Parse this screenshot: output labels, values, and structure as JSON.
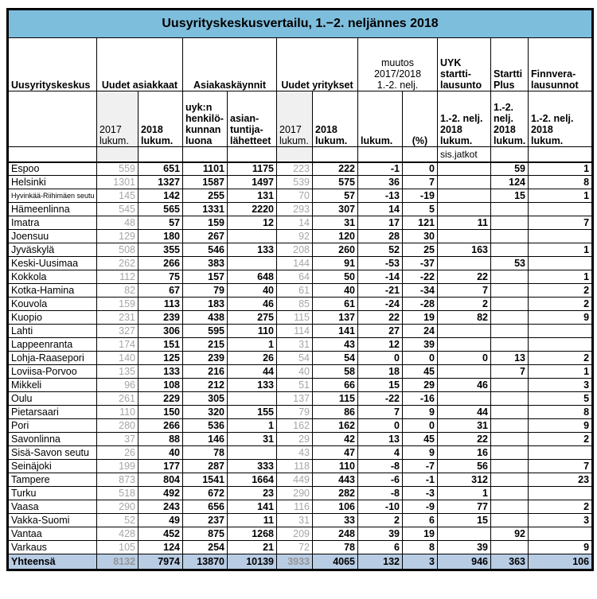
{
  "title": "Uusyrityskeskusvertailu, 1.−2. neljännes 2018",
  "colors": {
    "title_bg": "#7ebedd",
    "title_text": "#ffffff",
    "total_row_bg": "#b8cce4",
    "shaded_cell_bg": "#f0f0f0",
    "muted_text": "#a6a6a6",
    "border": "#000000"
  },
  "table": {
    "corner_label": "Uusyrityskeskus",
    "groups": [
      {
        "label": "Uudet asiakkaat",
        "span": 2
      },
      {
        "label": "Asiakaskäynnit",
        "span": 2
      },
      {
        "label": "Uudet yritykset",
        "span": 2
      },
      {
        "label": "muutos\n2017/2018\n1.-2. nelj.",
        "span": 2
      },
      {
        "label": "UYK\nstartti-\nlausunto",
        "span": 1
      },
      {
        "label": "Startti\nPlus",
        "span": 1
      },
      {
        "label": "Finnvera-\nlausunnot",
        "span": 1
      }
    ],
    "subheaders": [
      {
        "label": "2017\nlukum.",
        "muted": true
      },
      {
        "label": "2018\nlukum.",
        "muted": false
      },
      {
        "label": "uyk:n\nhenkilö-\nkunnan\nluona",
        "muted": false
      },
      {
        "label": "asian-\ntuntija-\nlähetteet",
        "muted": false
      },
      {
        "label": "2017\nlukum.",
        "muted": true
      },
      {
        "label": "2018\nlukum.",
        "muted": false
      },
      {
        "label": "lukum.",
        "muted": false
      },
      {
        "label": "(%)",
        "muted": false
      },
      {
        "label": "1.-2. nelj.\n2018\nlukum.",
        "muted": false
      },
      {
        "label": "1.-2.\nnelj.\n2018\nlukum.",
        "muted": false
      },
      {
        "label": "1.-2. nelj.\n2018\nlukum.",
        "muted": false
      }
    ],
    "note_label": "sis.jatkot",
    "rows": [
      {
        "name": "Espoo",
        "small": false,
        "values": [
          "559",
          "651",
          "1101",
          "1175",
          "223",
          "222",
          "-1",
          "0",
          "",
          "59",
          "1"
        ]
      },
      {
        "name": "Helsinki",
        "small": false,
        "values": [
          "1301",
          "1327",
          "1587",
          "1497",
          "539",
          "575",
          "36",
          "7",
          "",
          "124",
          "8"
        ]
      },
      {
        "name": "Hyvinkää-Riihimäen seutu",
        "small": true,
        "values": [
          "145",
          "142",
          "255",
          "131",
          "70",
          "57",
          "-13",
          "-19",
          "",
          "15",
          "1"
        ]
      },
      {
        "name": "Hämeenlinna",
        "small": false,
        "values": [
          "545",
          "565",
          "1331",
          "2220",
          "293",
          "307",
          "14",
          "5",
          "",
          "",
          ""
        ]
      },
      {
        "name": "Imatra",
        "small": false,
        "values": [
          "48",
          "57",
          "159",
          "12",
          "14",
          "31",
          "17",
          "121",
          "11",
          "",
          "7"
        ]
      },
      {
        "name": "Joensuu",
        "small": false,
        "values": [
          "129",
          "180",
          "267",
          "",
          "92",
          "120",
          "28",
          "30",
          "",
          "",
          ""
        ]
      },
      {
        "name": "Jyväskylä",
        "small": false,
        "values": [
          "508",
          "355",
          "546",
          "133",
          "208",
          "260",
          "52",
          "25",
          "163",
          "",
          "1"
        ]
      },
      {
        "name": "Keski-Uusimaa",
        "small": false,
        "values": [
          "262",
          "266",
          "383",
          "",
          "144",
          "91",
          "-53",
          "-37",
          "",
          "53",
          ""
        ]
      },
      {
        "name": "Kokkola",
        "small": false,
        "values": [
          "112",
          "75",
          "157",
          "648",
          "64",
          "50",
          "-14",
          "-22",
          "22",
          "",
          "1"
        ]
      },
      {
        "name": "Kotka-Hamina",
        "small": false,
        "values": [
          "82",
          "67",
          "79",
          "40",
          "61",
          "40",
          "-21",
          "-34",
          "7",
          "",
          "2"
        ]
      },
      {
        "name": "Kouvola",
        "small": false,
        "values": [
          "159",
          "113",
          "183",
          "46",
          "85",
          "61",
          "-24",
          "-28",
          "2",
          "",
          "2"
        ]
      },
      {
        "name": "Kuopio",
        "small": false,
        "values": [
          "231",
          "239",
          "438",
          "275",
          "115",
          "137",
          "22",
          "19",
          "82",
          "",
          "9"
        ]
      },
      {
        "name": "Lahti",
        "small": false,
        "values": [
          "327",
          "306",
          "595",
          "110",
          "114",
          "141",
          "27",
          "24",
          "",
          "",
          ""
        ]
      },
      {
        "name": "Lappeenranta",
        "small": false,
        "values": [
          "174",
          "151",
          "215",
          "1",
          "31",
          "43",
          "12",
          "39",
          "",
          "",
          ""
        ]
      },
      {
        "name": "Lohja-Raasepori",
        "small": false,
        "values": [
          "140",
          "125",
          "239",
          "26",
          "54",
          "54",
          "0",
          "0",
          "0",
          "13",
          "2"
        ]
      },
      {
        "name": "Loviisa-Porvoo",
        "small": false,
        "values": [
          "135",
          "133",
          "216",
          "44",
          "40",
          "58",
          "18",
          "45",
          "",
          "7",
          "1"
        ]
      },
      {
        "name": "Mikkeli",
        "small": false,
        "values": [
          "96",
          "108",
          "212",
          "133",
          "51",
          "66",
          "15",
          "29",
          "46",
          "",
          "3"
        ]
      },
      {
        "name": "Oulu",
        "small": false,
        "values": [
          "261",
          "229",
          "305",
          "",
          "137",
          "115",
          "-22",
          "-16",
          "",
          "",
          "5"
        ]
      },
      {
        "name": "Pietarsaari",
        "small": false,
        "values": [
          "110",
          "150",
          "320",
          "155",
          "79",
          "86",
          "7",
          "9",
          "44",
          "",
          "8"
        ]
      },
      {
        "name": "Pori",
        "small": false,
        "values": [
          "280",
          "266",
          "536",
          "1",
          "162",
          "162",
          "0",
          "0",
          "31",
          "",
          "9"
        ]
      },
      {
        "name": "Savonlinna",
        "small": false,
        "values": [
          "37",
          "88",
          "146",
          "31",
          "29",
          "42",
          "13",
          "45",
          "22",
          "",
          "2"
        ]
      },
      {
        "name": "Sisä-Savon seutu",
        "small": false,
        "values": [
          "26",
          "40",
          "78",
          "",
          "43",
          "47",
          "4",
          "9",
          "16",
          "",
          ""
        ]
      },
      {
        "name": "Seinäjoki",
        "small": false,
        "values": [
          "199",
          "177",
          "287",
          "333",
          "118",
          "110",
          "-8",
          "-7",
          "56",
          "",
          "7"
        ]
      },
      {
        "name": "Tampere",
        "small": false,
        "values": [
          "873",
          "804",
          "1541",
          "1664",
          "449",
          "443",
          "-6",
          "-1",
          "312",
          "",
          "23"
        ]
      },
      {
        "name": "Turku",
        "small": false,
        "values": [
          "518",
          "492",
          "672",
          "23",
          "290",
          "282",
          "-8",
          "-3",
          "1",
          "",
          ""
        ]
      },
      {
        "name": "Vaasa",
        "small": false,
        "values": [
          "290",
          "243",
          "656",
          "141",
          "116",
          "106",
          "-10",
          "-9",
          "77",
          "",
          "2"
        ]
      },
      {
        "name": "Vakka-Suomi",
        "small": false,
        "values": [
          "52",
          "49",
          "237",
          "11",
          "31",
          "33",
          "2",
          "6",
          "15",
          "",
          "3"
        ]
      },
      {
        "name": "Vantaa",
        "small": false,
        "values": [
          "428",
          "452",
          "875",
          "1268",
          "209",
          "248",
          "39",
          "19",
          "",
          "92",
          ""
        ]
      },
      {
        "name": "Varkaus",
        "small": false,
        "values": [
          "105",
          "124",
          "254",
          "21",
          "72",
          "78",
          "6",
          "8",
          "39",
          "",
          "9"
        ]
      }
    ],
    "total": {
      "name": "Yhteensä",
      "values": [
        "8132",
        "7974",
        "13870",
        "10139",
        "3933",
        "4065",
        "132",
        "3",
        "946",
        "363",
        "106"
      ]
    }
  }
}
